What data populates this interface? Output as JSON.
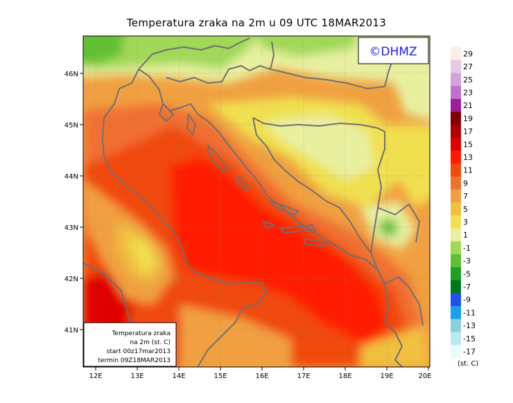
{
  "title": "Temperatura zraka na 2m u 09 UTC 18MAR2013",
  "watermark": "©DHMZ",
  "info_box": {
    "line1": "Temperatura zraka",
    "line2": "na 2m (st. C)",
    "line3": "start 00z17mar2013",
    "line4": "termin 09Z18MAR2013"
  },
  "lat_labels": [
    "46N",
    "45N",
    "44N",
    "43N",
    "42N",
    "41N"
  ],
  "lon_labels": [
    "12E",
    "13E",
    "14E",
    "15E",
    "16E",
    "17E",
    "18E",
    "19E",
    "20E"
  ],
  "colorbar": {
    "unit": "(st. C)",
    "levels": [
      "29",
      "27",
      "25",
      "23",
      "21",
      "19",
      "17",
      "15",
      "13",
      "11",
      "9",
      "7",
      "5",
      "3",
      "1",
      "-1",
      "-3",
      "-5",
      "-7",
      "-9",
      "-11",
      "-13",
      "-15",
      "-17"
    ],
    "colors": [
      "#fbeee4",
      "#e6c9e4",
      "#d6a2da",
      "#c072c9",
      "#9e1f9e",
      "#820000",
      "#b00000",
      "#e00000",
      "#ff1a00",
      "#f04a0e",
      "#f07030",
      "#f0a040",
      "#f0c040",
      "#f0e050",
      "#e8f0a0",
      "#a0d858",
      "#60c030",
      "#20a020",
      "#00781e",
      "#2050f0",
      "#1aa0e8",
      "#88d0e0",
      "#b8e8f0",
      "#e8fcfc"
    ]
  },
  "colors": {
    "border": "#707070",
    "grid": "#888888"
  }
}
